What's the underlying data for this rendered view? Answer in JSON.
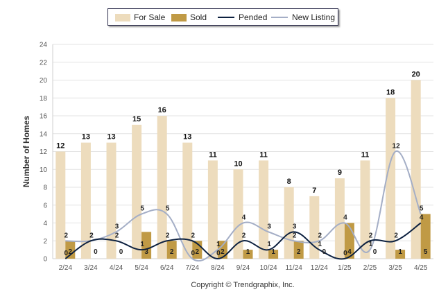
{
  "chart_data": {
    "type": "bar",
    "ylabel": "Number of Homes",
    "ylim": [
      0,
      24
    ],
    "yticks": [
      0,
      2,
      4,
      6,
      8,
      10,
      12,
      14,
      16,
      18,
      20,
      22,
      24
    ],
    "grid": true,
    "legend_position": "top",
    "categories": [
      "2/24",
      "3/24",
      "4/24",
      "5/24",
      "6/24",
      "7/24",
      "8/24",
      "9/24",
      "10/24",
      "11/24",
      "12/24",
      "1/25",
      "2/25",
      "3/25",
      "4/25"
    ],
    "series": [
      {
        "name": "For Sale",
        "kind": "bar",
        "color": "#eddcbd",
        "values": [
          12,
          13,
          13,
          15,
          16,
          13,
          11,
          10,
          11,
          8,
          7,
          9,
          11,
          18,
          20
        ]
      },
      {
        "name": "Sold",
        "kind": "bar",
        "color": "#c09a45",
        "values": [
          2,
          0,
          0,
          3,
          2,
          2,
          2,
          1,
          1,
          2,
          0,
          4,
          0,
          1,
          5
        ]
      },
      {
        "name": "Pended",
        "kind": "line",
        "color": "#0d2140",
        "values": [
          0,
          2,
          2,
          1,
          2,
          2,
          0,
          2,
          1,
          3,
          1,
          0,
          2,
          2,
          4
        ]
      },
      {
        "name": "New Listing",
        "kind": "line",
        "color": "#a4aec6",
        "values": [
          2,
          2,
          3,
          5,
          5,
          0,
          1,
          4,
          3,
          2,
          2,
          4,
          1,
          12,
          5
        ]
      }
    ],
    "footer": "Copyright © Trendgraphix, Inc."
  }
}
